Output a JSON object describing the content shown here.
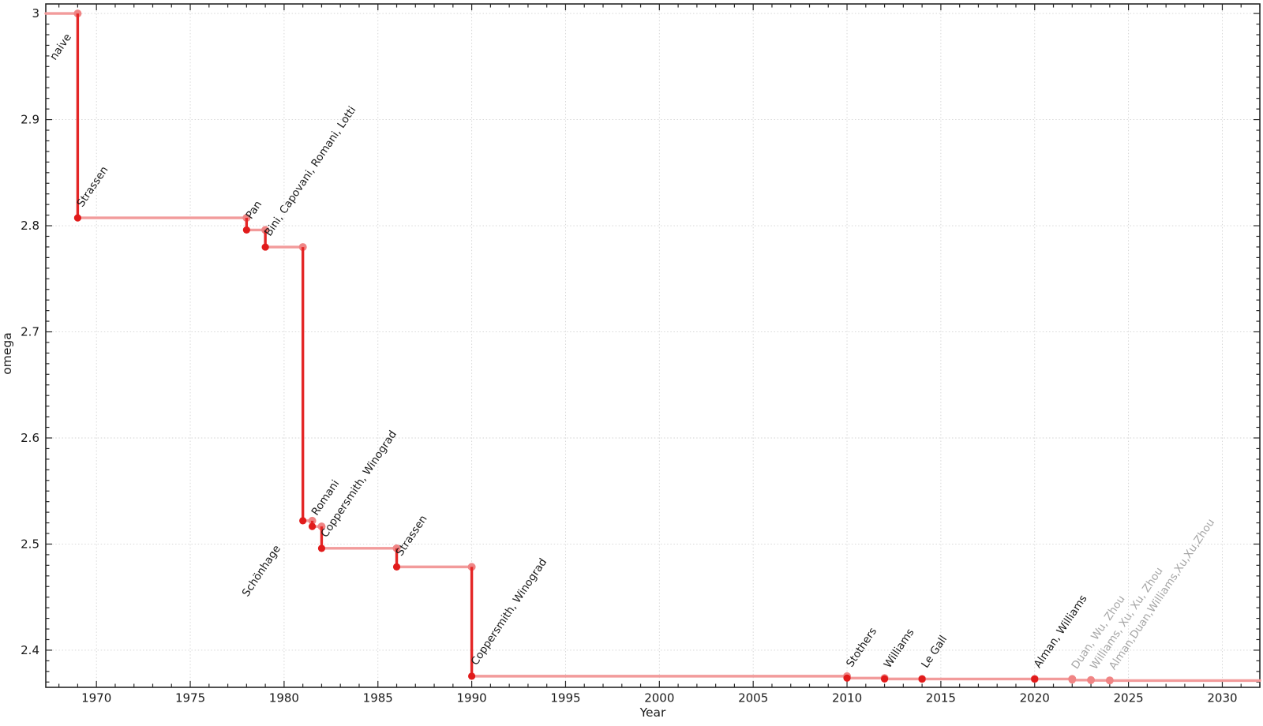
{
  "chart_data": {
    "type": "line",
    "subtype": "step-post-with-drops",
    "title": "",
    "xlabel": "Year",
    "ylabel": "omega",
    "xlim": [
      1967.3,
      2032.0
    ],
    "ylim": [
      2.365,
      3.009
    ],
    "grid": true,
    "legend": "none",
    "x_ticks": [
      {
        "v": 1970,
        "label": "1970"
      },
      {
        "v": 1975,
        "label": "1975"
      },
      {
        "v": 1980,
        "label": "1980"
      },
      {
        "v": 1985,
        "label": "1985"
      },
      {
        "v": 1990,
        "label": "1990"
      },
      {
        "v": 1995,
        "label": "1995"
      },
      {
        "v": 2000,
        "label": "2000"
      },
      {
        "v": 2005,
        "label": "2005"
      },
      {
        "v": 2010,
        "label": "2010"
      },
      {
        "v": 2015,
        "label": "2015"
      },
      {
        "v": 2020,
        "label": "2020"
      },
      {
        "v": 2025,
        "label": "2025"
      },
      {
        "v": 2030,
        "label": "2030"
      }
    ],
    "y_ticks": [
      {
        "v": 2.4,
        "label": "2.4"
      },
      {
        "v": 2.5,
        "label": "2.5"
      },
      {
        "v": 2.6,
        "label": "2.6"
      },
      {
        "v": 2.7,
        "label": "2.7"
      },
      {
        "v": 2.8,
        "label": "2.8"
      },
      {
        "v": 2.9,
        "label": "2.9"
      },
      {
        "v": 3.0,
        "label": "3"
      }
    ],
    "x_minor_step": 1,
    "y_minor_step": 0.01,
    "colors": {
      "step_line": "#F29B9B",
      "corner_marker": "#F08585",
      "drop_line": "#E42626",
      "point_marker": "#E11B1B",
      "annotation": "#1a1a1a",
      "annotation_unverified": "#a6a6a6",
      "grid": "#cbcbcb",
      "axis": "#262626",
      "tick_label": "#1a1a1a"
    },
    "start": {
      "label": "naive",
      "omega": 3
    },
    "points": [
      {
        "year": 1969,
        "omega": 2.8074,
        "label": "Strassen",
        "verified": true
      },
      {
        "year": 1978,
        "omega": 2.796,
        "label": "Pan",
        "verified": true
      },
      {
        "year": 1979,
        "omega": 2.7799,
        "label": "Bini, Capovani, Romani, Lotti",
        "verified": true
      },
      {
        "year": 1981,
        "omega": 2.522,
        "label": "Schönhage",
        "verified": true
      },
      {
        "year": 1981.5,
        "omega": 2.5166,
        "label": "Romani",
        "verified": true
      },
      {
        "year": 1982,
        "omega": 2.496,
        "label": "Coppersmith, Winograd",
        "verified": true
      },
      {
        "year": 1986,
        "omega": 2.4785,
        "label": "Strassen",
        "verified": true
      },
      {
        "year": 1990,
        "omega": 2.3755,
        "label": "Coppersmith, Winograd",
        "verified": true
      },
      {
        "year": 2010,
        "omega": 2.3737,
        "label": "Stothers",
        "verified": true
      },
      {
        "year": 2012,
        "omega": 2.3729,
        "label": "Williams",
        "verified": true
      },
      {
        "year": 2014,
        "omega": 2.3728639,
        "label": "Le Gall",
        "verified": true
      },
      {
        "year": 2020,
        "omega": 2.3728596,
        "label": "Alman, Williams",
        "verified": true
      },
      {
        "year": 2022,
        "omega": 2.371866,
        "label": "Duan, Wu, Zhou",
        "verified": false
      },
      {
        "year": 2023,
        "omega": 2.371552,
        "label": "Williams, Xu, Xu, Zhou",
        "verified": false
      },
      {
        "year": 2024,
        "omega": 2.371339,
        "label": "Alman,Duan,Williams,Xu,Xu,Zhou",
        "verified": false
      }
    ]
  }
}
